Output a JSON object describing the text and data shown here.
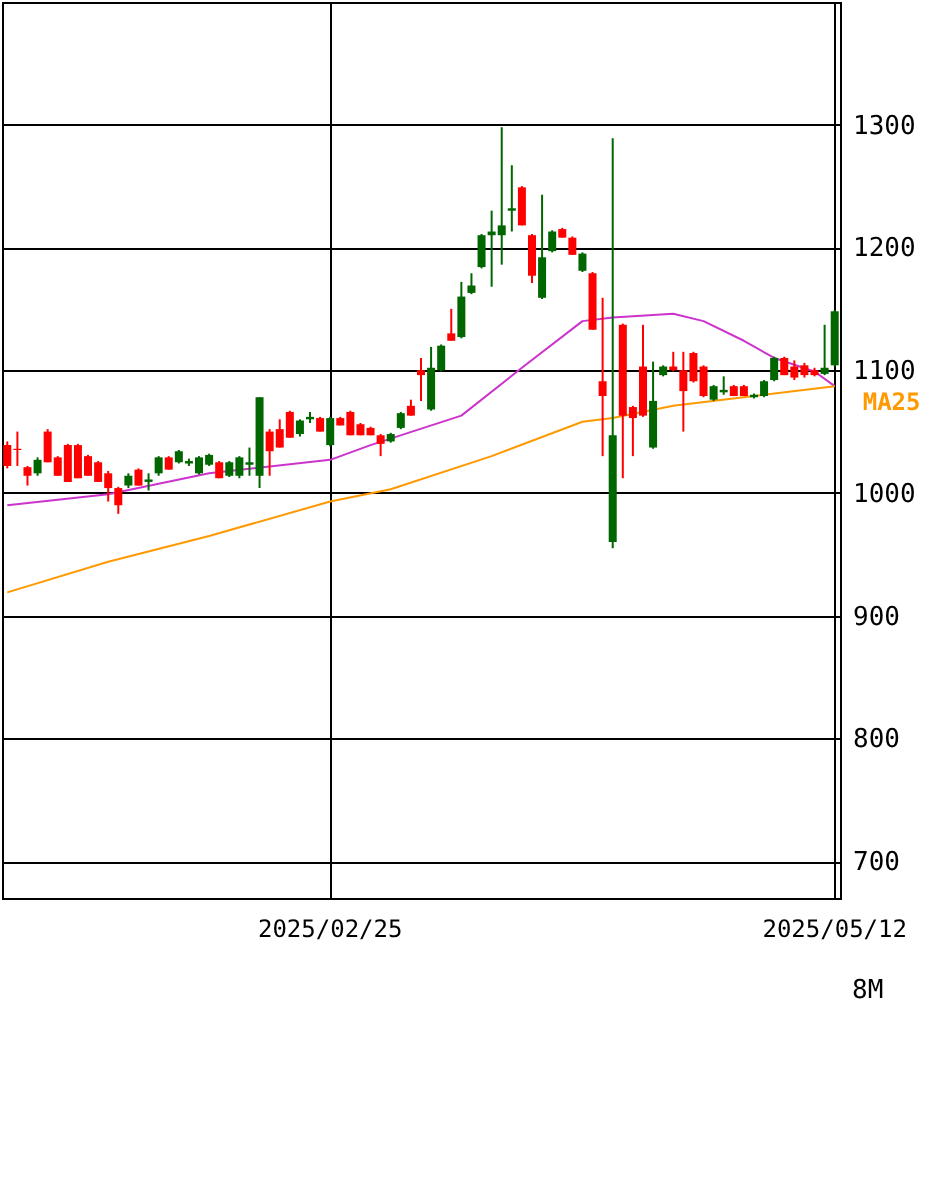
{
  "chart_data": {
    "type": "candlestick",
    "categories": [
      null,
      null,
      null,
      null,
      null,
      null,
      null,
      null,
      null,
      null,
      null,
      null,
      null,
      null,
      null,
      null,
      null,
      null,
      null,
      null,
      null,
      null,
      null,
      null,
      null,
      null,
      null,
      null,
      null,
      null,
      null,
      null,
      "2025/02/25",
      null,
      null,
      null,
      null,
      null,
      null,
      null,
      null,
      null,
      null,
      null,
      null,
      null,
      null,
      null,
      null,
      null,
      null,
      null,
      null,
      null,
      null,
      null,
      null,
      null,
      null,
      null,
      null,
      null,
      null,
      null,
      null,
      null,
      null,
      null,
      null,
      null,
      null,
      null,
      null,
      null,
      null,
      null,
      null,
      null,
      null,
      null,
      null,
      null,
      "2025/05/12"
    ],
    "ohlc": [
      [
        1039,
        1042,
        1020,
        1022
      ],
      [
        1036,
        1050,
        1022,
        1035
      ],
      [
        1021,
        1022,
        1006,
        1014
      ],
      [
        1016,
        1029,
        1014,
        1027
      ],
      [
        1050,
        1052,
        1025,
        1025
      ],
      [
        1029,
        1030,
        1014,
        1014
      ],
      [
        1039,
        1040,
        1009,
        1009
      ],
      [
        1039,
        1040,
        1012,
        1012
      ],
      [
        1030,
        1031,
        1014,
        1014
      ],
      [
        1025,
        1026,
        1009,
        1009
      ],
      [
        1016,
        1018,
        993,
        1004
      ],
      [
        1004,
        1005,
        983,
        990
      ],
      [
        1006,
        1016,
        1004,
        1014
      ],
      [
        1019,
        1020,
        1006,
        1006
      ],
      [
        1009,
        1016,
        1002,
        1011
      ],
      [
        1016,
        1030,
        1014,
        1029
      ],
      [
        1029,
        1030,
        1019,
        1019
      ],
      [
        1025,
        1035,
        1024,
        1034
      ],
      [
        1024,
        1028,
        1022,
        1026
      ],
      [
        1016,
        1030,
        1015,
        1029
      ],
      [
        1023,
        1032,
        1022,
        1031
      ],
      [
        1025,
        1026,
        1012,
        1012
      ],
      [
        1014,
        1026,
        1013,
        1025
      ],
      [
        1014,
        1030,
        1012,
        1029
      ],
      [
        1023,
        1037,
        1014,
        1025
      ],
      [
        1014,
        1078,
        1004,
        1078
      ],
      [
        1050,
        1052,
        1014,
        1034
      ],
      [
        1052,
        1060,
        1037,
        1037
      ],
      [
        1066,
        1067,
        1045,
        1045
      ],
      [
        1048,
        1060,
        1046,
        1059
      ],
      [
        1060,
        1066,
        1057,
        1062
      ],
      [
        1061,
        1062,
        1050,
        1050
      ],
      [
        1039,
        1062,
        1038,
        1061
      ],
      [
        1061,
        1062,
        1055,
        1055
      ],
      [
        1066,
        1067,
        1047,
        1047
      ],
      [
        1056,
        1057,
        1047,
        1047
      ],
      [
        1053,
        1054,
        1047,
        1047
      ],
      [
        1047,
        1048,
        1030,
        1040
      ],
      [
        1042,
        1049,
        1041,
        1048
      ],
      [
        1053,
        1066,
        1052,
        1065
      ],
      [
        1071,
        1076,
        1063,
        1063
      ],
      [
        1100,
        1110,
        1075,
        1096
      ],
      [
        1068,
        1119,
        1067,
        1102
      ],
      [
        1100,
        1121,
        1099,
        1120
      ],
      [
        1130,
        1150,
        1124,
        1124
      ],
      [
        1127,
        1172,
        1126,
        1160
      ],
      [
        1163,
        1179,
        1162,
        1169
      ],
      [
        1184,
        1211,
        1183,
        1210
      ],
      [
        1210,
        1230,
        1168,
        1213
      ],
      [
        1210,
        1298,
        1186,
        1218
      ],
      [
        1230,
        1267,
        1213,
        1232
      ],
      [
        1249,
        1250,
        1218,
        1218
      ],
      [
        1210,
        1211,
        1171,
        1177
      ],
      [
        1159,
        1243,
        1158,
        1192
      ],
      [
        1197,
        1214,
        1196,
        1213
      ],
      [
        1215,
        1216,
        1208,
        1208
      ],
      [
        1208,
        1209,
        1194,
        1194
      ],
      [
        1181,
        1196,
        1180,
        1195
      ],
      [
        1179,
        1180,
        1133,
        1133
      ],
      [
        1091,
        1159,
        1030,
        1079
      ],
      [
        960,
        1289,
        955,
        1047
      ],
      [
        1137,
        1138,
        1012,
        1063
      ],
      [
        1070,
        1071,
        1030,
        1061
      ],
      [
        1103,
        1137,
        1062,
        1063
      ],
      [
        1037,
        1107,
        1036,
        1075
      ],
      [
        1096,
        1104,
        1095,
        1103
      ],
      [
        1103,
        1115,
        1099,
        1100
      ],
      [
        1100,
        1115,
        1050,
        1083
      ],
      [
        1114,
        1115,
        1090,
        1091
      ],
      [
        1103,
        1104,
        1078,
        1079
      ],
      [
        1076,
        1088,
        1075,
        1087
      ],
      [
        1082,
        1095,
        1080,
        1084
      ],
      [
        1087,
        1088,
        1079,
        1079
      ],
      [
        1087,
        1088,
        1079,
        1079
      ],
      [
        1078,
        1081,
        1077,
        1080
      ],
      [
        1079,
        1092,
        1078,
        1091
      ],
      [
        1092,
        1111,
        1091,
        1110
      ],
      [
        1110,
        1111,
        1096,
        1096
      ],
      [
        1103,
        1108,
        1092,
        1094
      ],
      [
        1104,
        1106,
        1094,
        1096
      ],
      [
        1100,
        1102,
        1095,
        1096
      ],
      [
        1097,
        1137,
        1096,
        1102
      ],
      [
        1104,
        1149,
        1103,
        1148
      ]
    ],
    "colors": [
      "#ff0000",
      "#ff0000",
      "#ff0000",
      "#006600",
      "#ff0000",
      "#ff0000",
      "#ff0000",
      "#ff0000",
      "#ff0000",
      "#ff0000",
      "#ff0000",
      "#ff0000",
      "#006600",
      "#ff0000",
      "#006600",
      "#006600",
      "#ff0000",
      "#006600",
      "#006600",
      "#006600",
      "#006600",
      "#ff0000",
      "#006600",
      "#006600",
      "#006600",
      "#006600",
      "#ff0000",
      "#ff0000",
      "#ff0000",
      "#006600",
      "#006600",
      "#ff0000",
      "#006600",
      "#ff0000",
      "#ff0000",
      "#ff0000",
      "#ff0000",
      "#ff0000",
      "#006600",
      "#006600",
      "#ff0000",
      "#ff0000",
      "#006600",
      "#006600",
      "#ff0000",
      "#006600",
      "#006600",
      "#006600",
      "#006600",
      "#006600",
      "#006600",
      "#ff0000",
      "#ff0000",
      "#006600",
      "#006600",
      "#ff0000",
      "#ff0000",
      "#006600",
      "#ff0000",
      "#ff0000",
      "#006600",
      "#ff0000",
      "#ff0000",
      "#ff0000",
      "#006600",
      "#006600",
      "#ff0000",
      "#ff0000",
      "#ff0000",
      "#ff0000",
      "#006600",
      "#006600",
      "#ff0000",
      "#ff0000",
      "#006600",
      "#006600",
      "#006600",
      "#ff0000",
      "#ff0000",
      "#ff0000",
      "#ff0000",
      "#006600",
      "#006600"
    ],
    "series": [
      {
        "type": "line",
        "color": "#cc33cc",
        "values": [
          990,
          null,
          null,
          null,
          null,
          null,
          null,
          null,
          null,
          null,
          999,
          null,
          null,
          null,
          null,
          null,
          null,
          null,
          null,
          null,
          1016,
          null,
          null,
          null,
          null,
          null,
          null,
          null,
          null,
          null,
          null,
          null,
          1027,
          null,
          null,
          null,
          1039,
          null,
          null,
          null,
          null,
          null,
          null,
          null,
          null,
          1063,
          null,
          null,
          null,
          null,
          null,
          1102,
          null,
          null,
          null,
          null,
          null,
          1140,
          null,
          null,
          1143,
          null,
          null,
          null,
          null,
          null,
          1146,
          null,
          null,
          1140,
          null,
          null,
          null,
          1124,
          null,
          null,
          1110,
          null,
          null,
          null,
          1099,
          null,
          1087
        ]
      },
      {
        "type": "line",
        "name": "MA25",
        "color": "#ff9900",
        "values": [
          919,
          null,
          null,
          null,
          null,
          null,
          null,
          null,
          null,
          null,
          944,
          null,
          null,
          null,
          null,
          null,
          null,
          null,
          null,
          null,
          965,
          null,
          null,
          null,
          null,
          null,
          null,
          null,
          null,
          null,
          null,
          null,
          993,
          null,
          null,
          null,
          null,
          null,
          1003,
          null,
          null,
          null,
          null,
          null,
          null,
          null,
          null,
          null,
          1030,
          null,
          null,
          null,
          null,
          null,
          null,
          null,
          null,
          1058,
          null,
          null,
          1061,
          null,
          null,
          null,
          null,
          null,
          1071,
          null,
          null,
          null,
          null,
          null,
          null,
          null,
          1079,
          null,
          null,
          null,
          null,
          null,
          null,
          null,
          1087
        ]
      }
    ],
    "ylim": [
      670,
      1400
    ],
    "yticks": [
      700,
      800,
      900,
      1000,
      1100,
      1200,
      1300
    ],
    "grid": true,
    "annotations": [
      "8M"
    ]
  }
}
